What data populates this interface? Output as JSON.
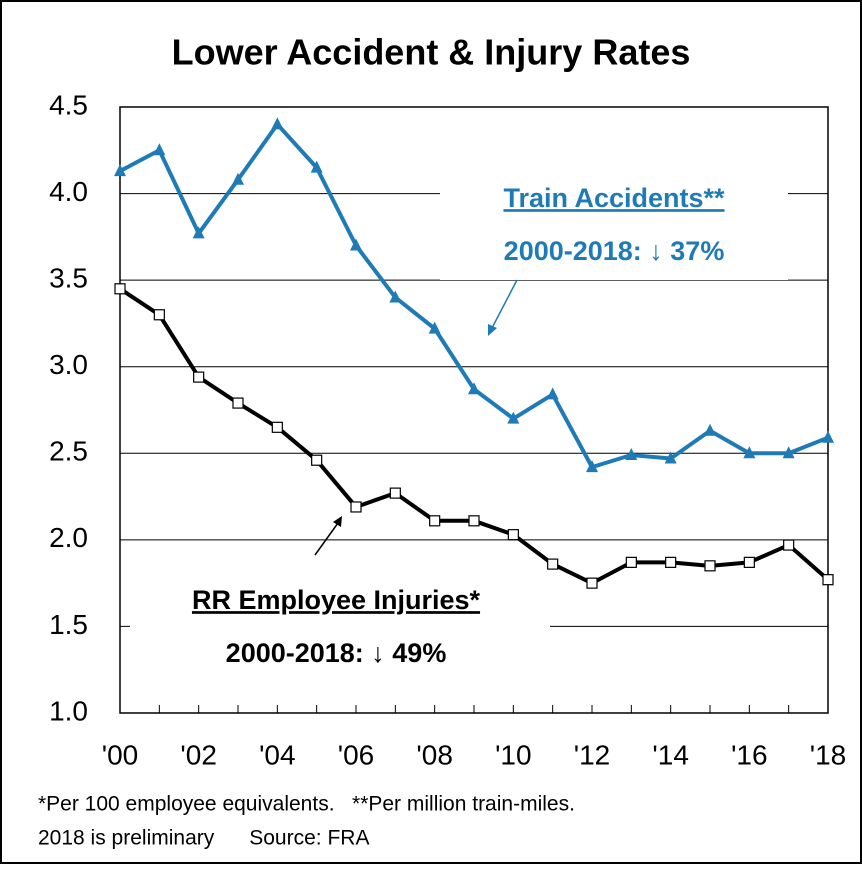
{
  "chart_data": {
    "type": "line",
    "title": "Lower Accident & Injury Rates",
    "categories": [
      "'00",
      null,
      "'02",
      null,
      "'04",
      null,
      "'06",
      null,
      "'08",
      null,
      "'10",
      null,
      "'12",
      null,
      "'14",
      null,
      "'16",
      null,
      "'18"
    ],
    "series": [
      {
        "name": "Train Accidents**",
        "color": "#1f7bb6",
        "marker": "triangle",
        "values": [
          4.13,
          4.25,
          3.77,
          4.08,
          4.4,
          4.15,
          3.7,
          3.4,
          3.22,
          2.87,
          2.7,
          2.84,
          2.42,
          2.49,
          2.47,
          2.63,
          2.5,
          2.5,
          2.59
        ]
      },
      {
        "name": "RR Employee Injuries*",
        "color": "#000000",
        "marker": "square",
        "values": [
          3.45,
          3.3,
          2.94,
          2.79,
          2.65,
          2.46,
          2.19,
          2.27,
          2.11,
          2.11,
          2.03,
          1.86,
          1.75,
          1.87,
          1.87,
          1.85,
          1.87,
          1.97,
          1.77
        ]
      }
    ],
    "annotations": [
      "2000-2018: ↓ 37%",
      "2000-2018: ↓ 49%"
    ],
    "footnotes": [
      "*Per 100 employee equivalents.   **Per million train-miles.",
      "2018 is preliminary      Source: FRA"
    ],
    "ylim": [
      1,
      4.5
    ],
    "yticks": [
      {
        "value": 1,
        "label": "1.0"
      },
      1.5,
      {
        "value": 2,
        "label": "2.0"
      },
      2.5,
      {
        "value": 3,
        "label": "3.0"
      },
      3.5,
      {
        "value": 4,
        "label": "4.0"
      },
      4.5
    ],
    "grid": true
  }
}
